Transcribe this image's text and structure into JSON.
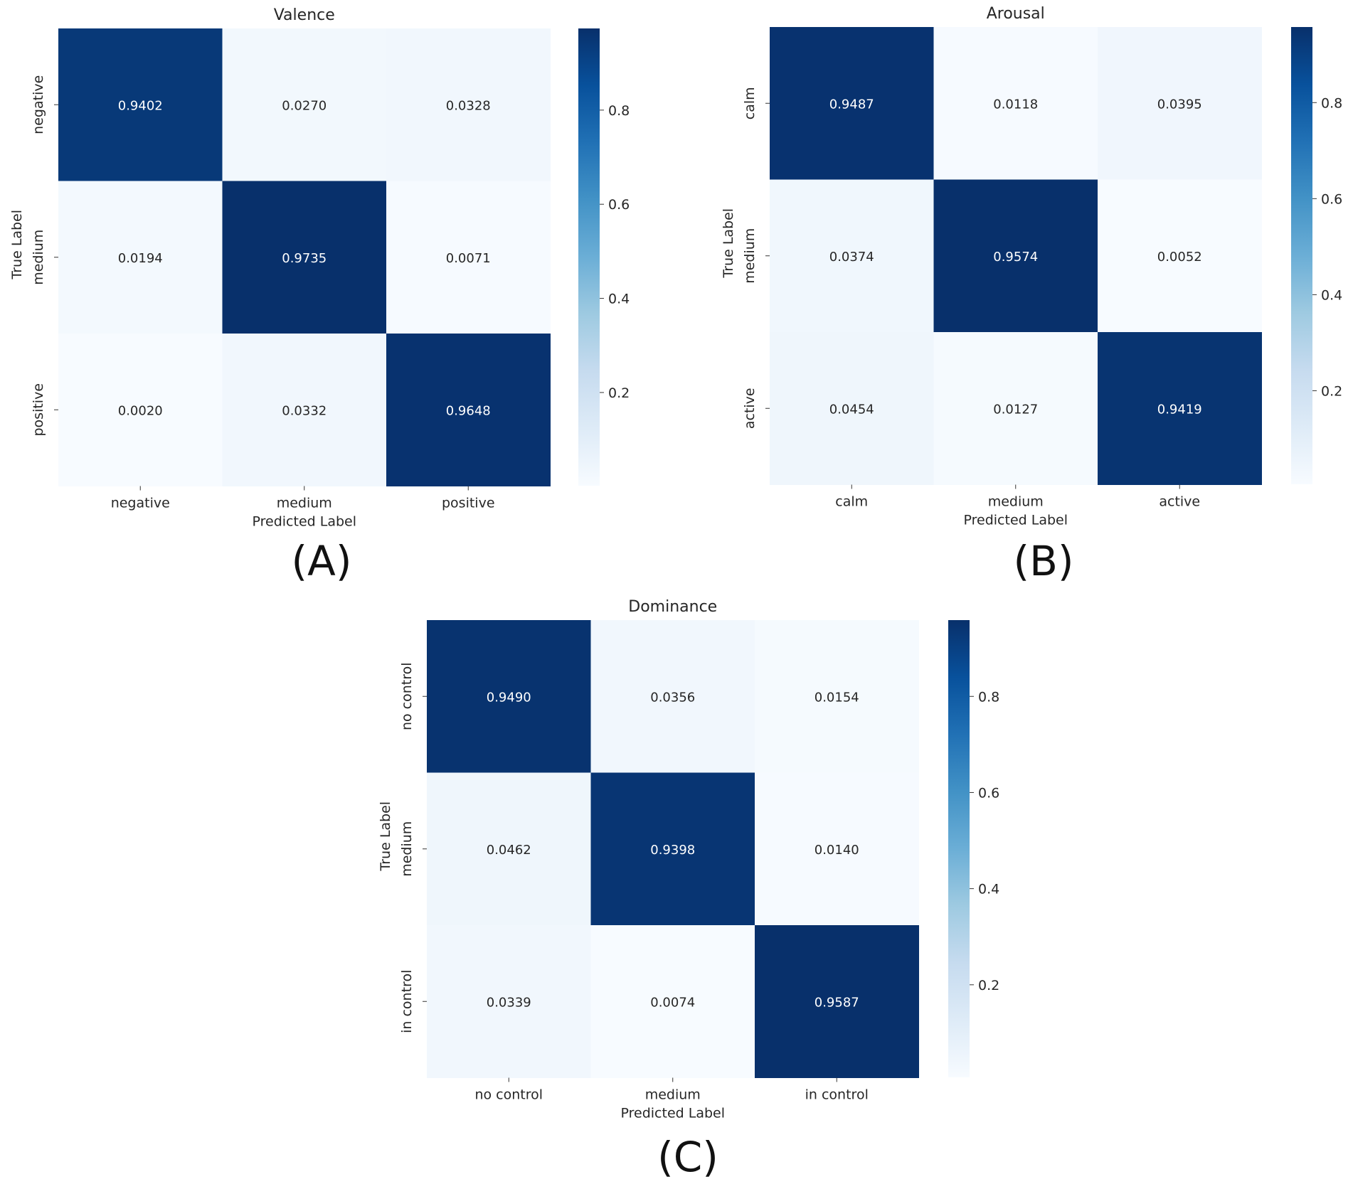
{
  "colors": {
    "cmap_low": "#f7fbff",
    "cmap_stops": [
      "#f7fbff",
      "#deebf7",
      "#c6dbef",
      "#9ecae1",
      "#6baed6",
      "#4292c6",
      "#2171b5",
      "#08519c",
      "#08306b"
    ],
    "text_dark": "#262626",
    "text_light": "#ffffff"
  },
  "chart_data": [
    {
      "type": "heatmap",
      "panel_label": "(A)",
      "title": "Valence",
      "xlabel": "Predicted Label",
      "ylabel": "True Label",
      "x_categories": [
        "negative",
        "medium",
        "positive"
      ],
      "y_categories": [
        "negative",
        "medium",
        "positive"
      ],
      "values": [
        [
          0.9402,
          0.027,
          0.0328
        ],
        [
          0.0194,
          0.9735,
          0.0071
        ],
        [
          0.002,
          0.0332,
          0.9648
        ]
      ],
      "value_labels": [
        [
          "0.9402",
          "0.0270",
          "0.0328"
        ],
        [
          "0.0194",
          "0.9735",
          "0.0071"
        ],
        [
          "0.0020",
          "0.0332",
          "0.9648"
        ]
      ],
      "colorbar": {
        "vmin": 0.002,
        "vmax": 0.9735,
        "ticks": [
          0.2,
          0.4,
          0.6,
          0.8
        ],
        "tick_labels": [
          "0.2",
          "0.4",
          "0.6",
          "0.8"
        ]
      }
    },
    {
      "type": "heatmap",
      "panel_label": "(B)",
      "title": "Arousal",
      "xlabel": "Predicted Label",
      "ylabel": "True Label",
      "x_categories": [
        "calm",
        "medium",
        "active"
      ],
      "y_categories": [
        "calm",
        "medium",
        "active"
      ],
      "values": [
        [
          0.9487,
          0.0118,
          0.0395
        ],
        [
          0.0374,
          0.9574,
          0.0052
        ],
        [
          0.0454,
          0.0127,
          0.9419
        ]
      ],
      "value_labels": [
        [
          "0.9487",
          "0.0118",
          "0.0395"
        ],
        [
          "0.0374",
          "0.9574",
          "0.0052"
        ],
        [
          "0.0454",
          "0.0127",
          "0.9419"
        ]
      ],
      "colorbar": {
        "vmin": 0.0052,
        "vmax": 0.9574,
        "ticks": [
          0.2,
          0.4,
          0.6,
          0.8
        ],
        "tick_labels": [
          "0.2",
          "0.4",
          "0.6",
          "0.8"
        ]
      }
    },
    {
      "type": "heatmap",
      "panel_label": "(C)",
      "title": "Dominance",
      "xlabel": "Predicted Label",
      "ylabel": "True Label",
      "x_categories": [
        "no control",
        "medium",
        "in control"
      ],
      "y_categories": [
        "no control",
        "medium",
        "in control"
      ],
      "values": [
        [
          0.949,
          0.0356,
          0.0154
        ],
        [
          0.0462,
          0.9398,
          0.014
        ],
        [
          0.0339,
          0.0074,
          0.9587
        ]
      ],
      "value_labels": [
        [
          "0.9490",
          "0.0356",
          "0.0154"
        ],
        [
          "0.0462",
          "0.9398",
          "0.0140"
        ],
        [
          "0.0339",
          "0.0074",
          "0.9587"
        ]
      ],
      "colorbar": {
        "vmin": 0.0074,
        "vmax": 0.9587,
        "ticks": [
          0.2,
          0.4,
          0.6,
          0.8
        ],
        "tick_labels": [
          "0.2",
          "0.4",
          "0.6",
          "0.8"
        ]
      }
    }
  ]
}
